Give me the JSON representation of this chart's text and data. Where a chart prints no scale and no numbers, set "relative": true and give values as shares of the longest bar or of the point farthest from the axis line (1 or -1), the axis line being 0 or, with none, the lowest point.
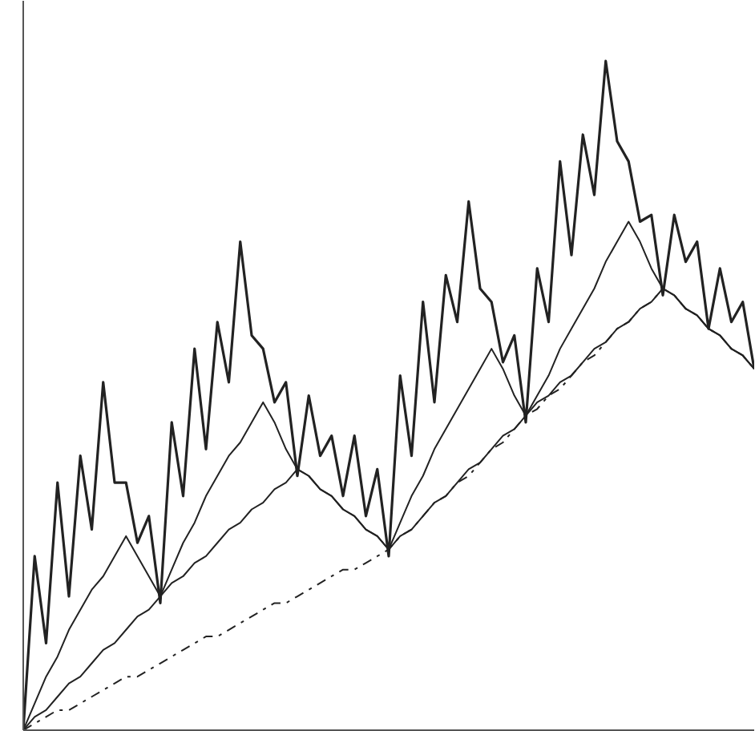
{
  "chart_data": {
    "type": "line",
    "relative": true,
    "categories": [
      null,
      null,
      null,
      null,
      null,
      null,
      null,
      null,
      null,
      null,
      null,
      null,
      null,
      null,
      null,
      null,
      null,
      null,
      null,
      null,
      null,
      null,
      null,
      null,
      null,
      null,
      null,
      null,
      null,
      null,
      null,
      null,
      null,
      null,
      null,
      null,
      null,
      null,
      null,
      null,
      null,
      null,
      null,
      null,
      null,
      null,
      null,
      null,
      null,
      null,
      null,
      null,
      null,
      null,
      null,
      null,
      null,
      null,
      null,
      null,
      null,
      null,
      null,
      null,
      null
    ],
    "series": [
      {
        "color": "#222222",
        "values": [
          0,
          0.26,
          0.13,
          0.37,
          0.2,
          0.41,
          0.3,
          0.52,
          0.37,
          0.37,
          0.28,
          0.32,
          0.19,
          0.46,
          0.35,
          0.57,
          0.42,
          0.61,
          0.52,
          0.73,
          0.59,
          0.57,
          0.49,
          0.52,
          0.38,
          0.5,
          0.41,
          0.44,
          0.35,
          0.44,
          0.32,
          0.39,
          0.26,
          0.53,
          0.41,
          0.64,
          0.49,
          0.68,
          0.61,
          0.79,
          0.66,
          0.64,
          0.55,
          0.59,
          0.46,
          0.69,
          0.61,
          0.85,
          0.71,
          0.89,
          0.8,
          1,
          0.88,
          0.85,
          0.76,
          0.77,
          0.65,
          0.77,
          0.7,
          0.73,
          0.6,
          0.69,
          0.61,
          0.64,
          0.54
        ]
      },
      {
        "color": "#222222",
        "line_style": "solid",
        "values": [
          0,
          0.04,
          0.08,
          0.11,
          0.15,
          0.18,
          0.21,
          0.23,
          0.26,
          0.29,
          0.26,
          0.23,
          0.2,
          0.24,
          0.28,
          0.31,
          0.35,
          0.38,
          0.41,
          0.43,
          0.46,
          0.49,
          0.46,
          0.42,
          0.39,
          0.38,
          0.36,
          0.35,
          0.33,
          0.32,
          0.3,
          0.29,
          0.27,
          0.31,
          0.35,
          0.38,
          0.42,
          0.45,
          0.48,
          0.51,
          0.54,
          0.57,
          0.54,
          0.5,
          0.47,
          0.5,
          0.53,
          0.57,
          0.6,
          0.63,
          0.66,
          0.7,
          0.73,
          0.76,
          0.73,
          0.69,
          0.66,
          0.65,
          0.63,
          0.62,
          0.6,
          0.59,
          0.57,
          0.56,
          0.54
        ]
      },
      {
        "color": "#222222",
        "line_style": "solid",
        "values": [
          0,
          0.02,
          0.03,
          0.05,
          0.07,
          0.08,
          0.1,
          0.12,
          0.13,
          0.15,
          0.17,
          0.18,
          0.2,
          0.22,
          0.23,
          0.25,
          0.26,
          0.28,
          0.3,
          0.31,
          0.33,
          0.34,
          0.36,
          0.37,
          0.39,
          0.38,
          0.36,
          0.35,
          0.33,
          0.32,
          0.3,
          0.29,
          0.27,
          0.29,
          0.3,
          0.32,
          0.34,
          0.35,
          0.37,
          0.39,
          0.4,
          0.42,
          0.44,
          0.45,
          0.47,
          0.49,
          0.5,
          0.52,
          0.53,
          0.55,
          0.57,
          0.58,
          0.6,
          0.61,
          0.63,
          0.64,
          0.66,
          0.65,
          0.63,
          0.62,
          0.6,
          0.59,
          0.57,
          0.56,
          0.54
        ]
      },
      {
        "color": "#222222",
        "line_style": "dashed",
        "values": [
          0,
          0.01,
          0.02,
          0.03,
          0.03,
          0.04,
          0.05,
          0.06,
          0.07,
          0.08,
          0.08,
          0.09,
          0.1,
          0.11,
          0.12,
          0.13,
          0.14,
          0.14,
          0.15,
          0.16,
          0.17,
          0.18,
          0.19,
          0.19,
          0.2,
          0.21,
          0.22,
          0.23,
          0.24,
          0.24,
          0.25,
          0.26,
          0.27,
          0.29,
          0.3,
          0.32,
          0.34,
          0.35,
          0.37,
          0.38,
          0.4,
          0.42,
          0.43,
          0.45,
          0.47,
          0.48,
          0.5,
          0.51,
          0.53,
          0.55,
          0.56,
          0.58,
          0.6,
          0.61,
          0.63,
          0.64,
          0.66,
          0.65,
          0.63,
          0.62,
          0.6,
          0.59,
          0.57,
          0.56,
          0.54
        ]
      }
    ]
  }
}
